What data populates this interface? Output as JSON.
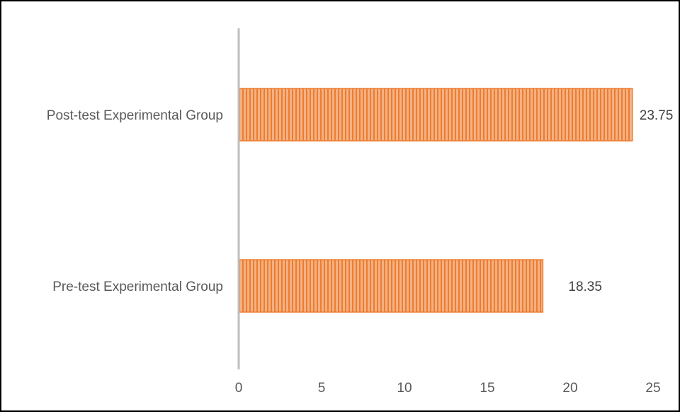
{
  "chart_data": {
    "type": "bar",
    "orientation": "horizontal",
    "categories": [
      "Pre-test Experimental Group",
      "Post-test Experimental Group"
    ],
    "values": [
      18.35,
      23.75
    ],
    "data_labels": [
      "18.35",
      "23.75"
    ],
    "xticks": [
      "0",
      "5",
      "10",
      "15",
      "20",
      "25"
    ],
    "xlim": [
      0,
      25
    ],
    "xlabel": "",
    "ylabel": "",
    "grid": false,
    "legend": "none",
    "colors": {
      "bar_fill": "#f4b183",
      "bar_stripe": "#ed7d31",
      "axis": "#bfbfbf",
      "text": "#595959",
      "data_label": "#404040",
      "border": "#000000"
    }
  }
}
